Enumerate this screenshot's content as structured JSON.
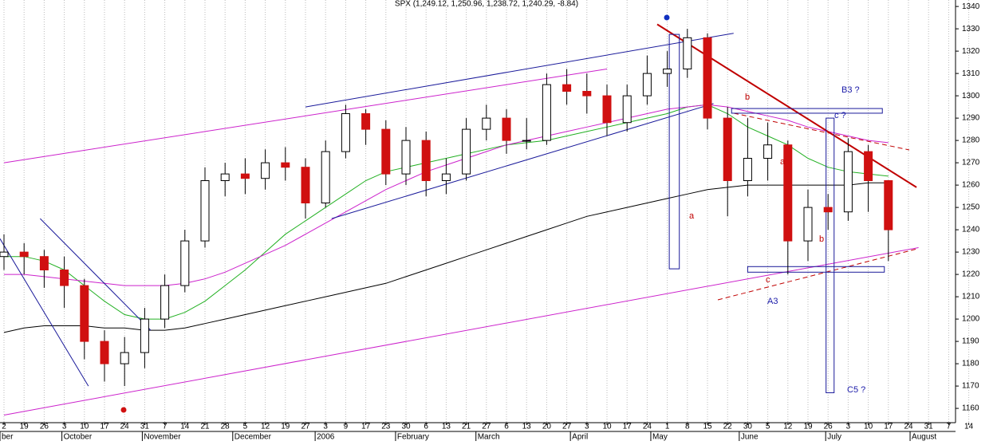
{
  "chart_data": {
    "type": "candlestick",
    "title": "SPX (1,249.12, 1,250.96, 1,238.72, 1,240.29, -8.84)",
    "categories": [
      "2",
      "19",
      "26",
      "3",
      "10",
      "17",
      "24",
      "31",
      "7",
      "14",
      "21",
      "28",
      "5",
      "12",
      "19",
      "27",
      "3",
      "9",
      "17",
      "23",
      "30",
      "6",
      "13",
      "21",
      "27",
      "6",
      "13",
      "20",
      "27",
      "3",
      "10",
      "17",
      "24",
      "1",
      "8",
      "15",
      "22",
      "30",
      "5",
      "12",
      "19",
      "26",
      "3",
      "10",
      "17",
      "24",
      "31",
      "7",
      "14"
    ],
    "months": [
      "ber",
      "October",
      "November",
      "December",
      "2006",
      "February",
      "March",
      "April",
      "May",
      "June",
      "July",
      "August"
    ],
    "open": [
      1228,
      1230,
      1228,
      1222,
      1215,
      1190,
      1180,
      1185,
      1200,
      1215,
      1235,
      1262,
      1265,
      1263,
      1270,
      1268,
      1252,
      1275,
      1292,
      1285,
      1265,
      1280,
      1262,
      1265,
      1285,
      1290,
      1280,
      1280,
      1305,
      1302,
      1300,
      1288,
      1300,
      1310,
      1312,
      1326,
      1290,
      1262,
      1272,
      1278,
      1235,
      1250,
      1248,
      1275,
      1262,
      null,
      null,
      null,
      null
    ],
    "high": [
      1238,
      1234,
      1231,
      1228,
      1218,
      1195,
      1192,
      1205,
      1220,
      1240,
      1268,
      1270,
      1272,
      1276,
      1277,
      1272,
      1280,
      1296,
      1294,
      1289,
      1286,
      1284,
      1272,
      1290,
      1296,
      1294,
      1290,
      1310,
      1312,
      1310,
      1305,
      1305,
      1318,
      1320,
      1330,
      1328,
      1295,
      1290,
      1288,
      1280,
      1258,
      1256,
      1281,
      1278,
      1262,
      null,
      null,
      null,
      null
    ],
    "low": [
      1222,
      1220,
      1214,
      1205,
      1182,
      1172,
      1170,
      1178,
      1196,
      1212,
      1232,
      1255,
      1256,
      1258,
      1262,
      1245,
      1250,
      1272,
      1278,
      1260,
      1260,
      1255,
      1256,
      1262,
      1280,
      1274,
      1276,
      1278,
      1296,
      1292,
      1282,
      1284,
      1296,
      1304,
      1308,
      1285,
      1246,
      1255,
      1262,
      1220,
      1226,
      1240,
      1244,
      1248,
      1226,
      null,
      null,
      null,
      null
    ],
    "close": [
      1230,
      1228,
      1222,
      1215,
      1190,
      1180,
      1185,
      1200,
      1215,
      1235,
      1262,
      1265,
      1263,
      1270,
      1268,
      1252,
      1275,
      1292,
      1285,
      1265,
      1280,
      1262,
      1265,
      1285,
      1290,
      1280,
      1280,
      1305,
      1302,
      1300,
      1288,
      1300,
      1310,
      1312,
      1326,
      1290,
      1262,
      1272,
      1278,
      1235,
      1250,
      1248,
      1275,
      1262,
      1240,
      null,
      null,
      null,
      null
    ],
    "up_color": "#ffffff",
    "down_color": "#d01010",
    "series": [
      {
        "color": "#000000",
        "values": [
          1194,
          1196,
          1197,
          1197,
          1197,
          1196,
          1196,
          1195,
          1195,
          1196,
          1198,
          1200,
          1202,
          1204,
          1206,
          1208,
          1210,
          1212,
          1214,
          1216,
          1219,
          1222,
          1225,
          1228,
          1231,
          1234,
          1237,
          1240,
          1243,
          1246,
          1248,
          1250,
          1252,
          1254,
          1256,
          1258,
          1259,
          1260,
          1260,
          1260,
          1260,
          1260,
          1260,
          1261,
          1261,
          null,
          null,
          null,
          null
        ]
      },
      {
        "color": "#22b022",
        "values": [
          1228,
          1228,
          1226,
          1222,
          1215,
          1208,
          1202,
          1200,
          1200,
          1203,
          1208,
          1215,
          1222,
          1230,
          1238,
          1244,
          1250,
          1256,
          1262,
          1266,
          1268,
          1270,
          1272,
          1274,
          1276,
          1278,
          1279,
          1280,
          1282,
          1284,
          1286,
          1288,
          1290,
          1292,
          1295,
          1296,
          1292,
          1286,
          1282,
          1278,
          1272,
          1268,
          1266,
          1265,
          1264,
          null,
          null,
          null,
          null
        ]
      },
      {
        "color": "#cc22cc",
        "values": [
          1220,
          1220,
          1219,
          1218,
          1217,
          1216,
          1215,
          1215,
          1215,
          1216,
          1218,
          1221,
          1225,
          1229,
          1233,
          1238,
          1243,
          1248,
          1253,
          1258,
          1262,
          1266,
          1269,
          1272,
          1275,
          1278,
          1280,
          1282,
          1284,
          1286,
          1288,
          1290,
          1292,
          1294,
          1295,
          1296,
          1295,
          1293,
          1291,
          1289,
          1286,
          1284,
          1282,
          1280,
          1279,
          null,
          null,
          null,
          null
        ]
      }
    ],
    "trendlines": [
      {
        "color": "#cc22cc",
        "from": [
          0,
          1270
        ],
        "to": [
          30,
          1312
        ]
      },
      {
        "color": "#cc22cc",
        "from": [
          0,
          1157
        ],
        "to": [
          45.5,
          1232
        ]
      },
      {
        "color": "#1a1a9a",
        "from": [
          15,
          1295
        ],
        "to": [
          36.3,
          1328
        ]
      },
      {
        "color": "#1a1a9a",
        "from": [
          16.3,
          1245
        ],
        "to": [
          35.3,
          1296.5
        ]
      },
      {
        "color": "#1a1a9a",
        "from": [
          1.8,
          1245
        ],
        "to": [
          7.3,
          1195
        ]
      },
      {
        "color": "#1a1a9a",
        "from": [
          -0.2,
          1236
        ],
        "to": [
          4.2,
          1170
        ]
      },
      {
        "color": "#c00000",
        "from": [
          32.5,
          1332
        ],
        "to": [
          45.4,
          1259
        ]
      }
    ],
    "boxes": [
      {
        "color": "#1a1a9a",
        "x": [
          33.1,
          33.6
        ],
        "y": [
          1327.5,
          1222.5
        ]
      },
      {
        "color": "#1a1a9a",
        "x": [
          36.2,
          43.7
        ],
        "y": [
          1294.3,
          1292.2
        ]
      },
      {
        "color": "#1a1a9a",
        "x": [
          37.0,
          43.8
        ],
        "y": [
          1223.5,
          1221
        ]
      },
      {
        "color": "#1a1a9a",
        "x": [
          40.9,
          41.3
        ],
        "y": [
          1290,
          1167
        ]
      }
    ],
    "annotations": [
      "B3 ?",
      "c ?",
      "b",
      "a",
      "a",
      "b",
      "c",
      "A3",
      "C5 ?",
      "a"
    ],
    "ylim": [
      1153.6,
      1342.9
    ],
    "yticks": [
      1160,
      1170,
      1180,
      1190,
      1200,
      1210,
      1220,
      1230,
      1240,
      1250,
      1260,
      1270,
      1280,
      1290,
      1300,
      1310,
      1320,
      1330,
      1340
    ],
    "grid": true
  }
}
